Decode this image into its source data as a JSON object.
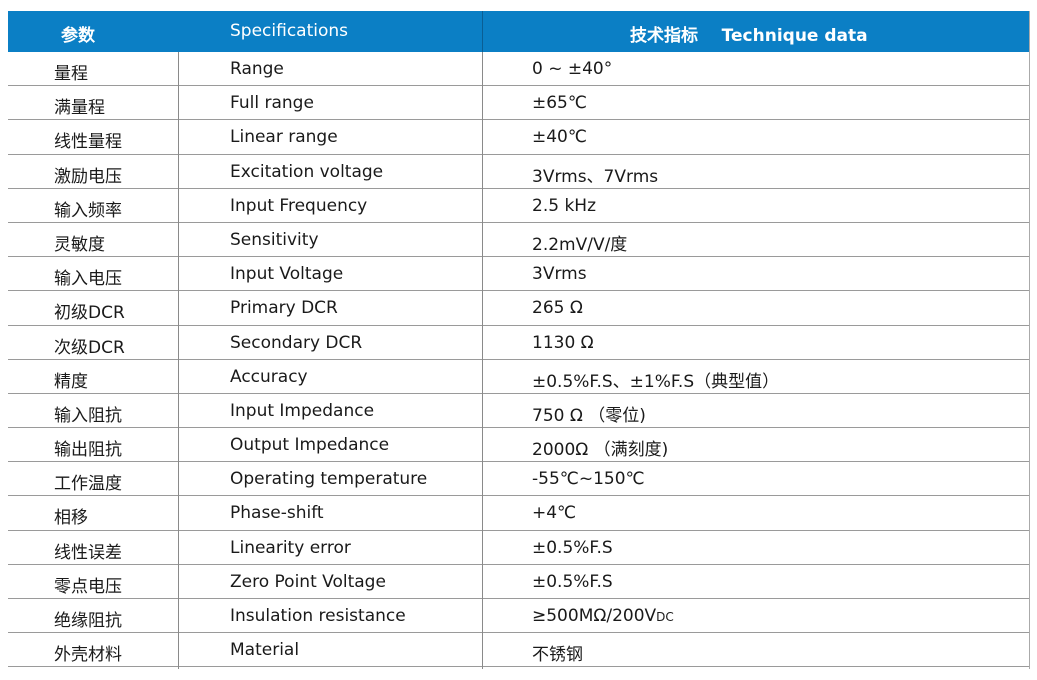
{
  "header": {
    "param": "参数",
    "specifications": "Specifications",
    "technique": "技术指标    Technique data"
  },
  "colors": {
    "header_bg": "#0b7fc5",
    "header_text": "#ffffff",
    "grid": "#9a9a9a"
  },
  "rows": [
    {
      "param": "量程",
      "spec": "Range",
      "value": "0 ~ ±40°"
    },
    {
      "param": "满量程",
      "spec": "Full range",
      "value": "±65℃"
    },
    {
      "param": "线性量程",
      "spec": "Linear range",
      "value": "±40℃"
    },
    {
      "param": "激励电压",
      "spec": "Excitation voltage",
      "value": "3Vrms、7Vrms"
    },
    {
      "param": "输入频率",
      "spec": "Input Frequency",
      "value": "2.5 kHz"
    },
    {
      "param": "灵敏度",
      "spec": "Sensitivity",
      "value": "2.2mV/V/度"
    },
    {
      "param": "输入电压",
      "spec": "Input Voltage",
      "value": "3Vrms"
    },
    {
      "param": "初级DCR",
      "spec": "Primary DCR",
      "value": "265 Ω"
    },
    {
      "param": "次级DCR",
      "spec": "Secondary DCR",
      "value": "1130 Ω"
    },
    {
      "param": "精度",
      "spec": "Accuracy",
      "value": "±0.5%F.S、±1%F.S（典型值）"
    },
    {
      "param": "输入阻抗",
      "spec": "Input Impedance",
      "value": "750 Ω （零位)"
    },
    {
      "param": "输出阻抗",
      "spec": "Output Impedance",
      "value": "2000Ω （满刻度)"
    },
    {
      "param": "工作温度",
      "spec": "Operating temperature",
      "value": "-55℃~150℃"
    },
    {
      "param": "相移",
      "spec": "Phase-shift",
      "value": "+4℃"
    },
    {
      "param": "线性误差",
      "spec": "Linearity error",
      "value": "±0.5%F.S"
    },
    {
      "param": "零点电压",
      "spec": "Zero Point Voltage",
      "value": "±0.5%F.S"
    },
    {
      "param": "绝缘阻抗",
      "spec": "Insulation resistance",
      "value": "≥500MΩ/200V",
      "value_sub": "DC"
    },
    {
      "param": "外壳材料",
      "spec": "Material",
      "value": "不锈钢"
    }
  ]
}
